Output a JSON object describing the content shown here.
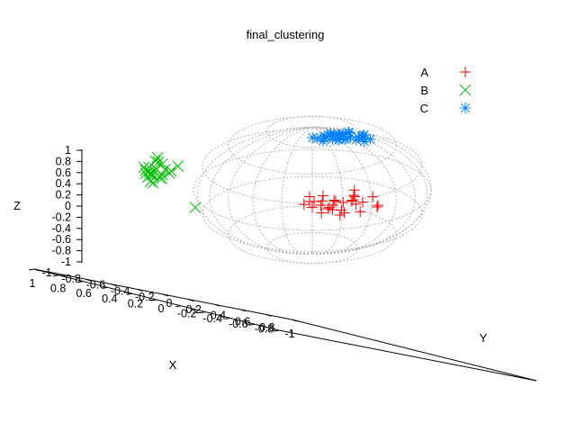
{
  "chart_data": {
    "type": "scatter",
    "subtype": "3d",
    "title": "final_clustering",
    "xlabel": "X",
    "ylabel": "Y",
    "zlabel": "Z",
    "xlim": [
      -1,
      1
    ],
    "ylim": [
      -1,
      1
    ],
    "zlim": [
      -1,
      1
    ],
    "x_ticks": [
      "-1",
      "-0.8",
      "-0.6",
      "-0.4",
      "-0.2",
      "0",
      "0.2",
      "0.4",
      "0.6",
      "0.8",
      "1"
    ],
    "y_ticks": [
      "-1",
      "-0.8",
      "-0.6",
      "-0.4",
      "-0.2",
      "0",
      "0.2",
      "0.4",
      "0.6",
      "0.8",
      "1"
    ],
    "z_ticks": [
      "1",
      "0.8",
      "0.6",
      "0.4",
      "0.2",
      "0",
      "-0.2",
      "-0.4",
      "-0.6",
      "-0.8",
      "-1"
    ],
    "reference_surface": "unit sphere wireframe (dashed grey)",
    "legend_position": "top-right",
    "series": [
      {
        "name": "A",
        "marker": "plus",
        "color": "#ff0000",
        "points": [
          [
            0.35,
            -0.15,
            0.0
          ],
          [
            0.28,
            -0.18,
            0.05
          ],
          [
            0.42,
            -0.1,
            -0.05
          ],
          [
            0.32,
            -0.2,
            -0.1
          ],
          [
            0.38,
            -0.12,
            0.08
          ],
          [
            0.3,
            -0.05,
            0.02
          ],
          [
            0.45,
            -0.18,
            0.0
          ],
          [
            0.25,
            -0.22,
            -0.04
          ],
          [
            0.4,
            -0.25,
            0.1
          ],
          [
            0.33,
            -0.08,
            -0.08
          ],
          [
            0.5,
            -0.15,
            0.05
          ],
          [
            0.22,
            -0.12,
            0.03
          ],
          [
            0.36,
            -0.3,
            -0.02
          ],
          [
            0.44,
            -0.05,
            -0.1
          ],
          [
            0.3,
            -0.15,
            0.15
          ],
          [
            0.55,
            -0.2,
            -0.03
          ],
          [
            0.2,
            -0.25,
            0.0
          ],
          [
            0.38,
            -0.2,
            -0.15
          ],
          [
            0.48,
            -0.28,
            0.06
          ],
          [
            0.27,
            -0.08,
            0.1
          ],
          [
            0.35,
            -0.35,
            0.02
          ],
          [
            0.6,
            -0.1,
            0.0
          ],
          [
            0.15,
            -0.3,
            0.05
          ],
          [
            0.42,
            -0.22,
            0.2
          ],
          [
            0.34,
            -0.12,
            -0.04
          ],
          [
            0.39,
            -0.17,
            0.03
          ],
          [
            0.31,
            -0.19,
            -0.06
          ],
          [
            0.46,
            -0.13,
            0.09
          ],
          [
            0.29,
            -0.27,
            0.01
          ],
          [
            0.52,
            -0.09,
            -0.07
          ]
        ]
      },
      {
        "name": "B",
        "marker": "cross",
        "color": "#00c000",
        "points": [
          [
            -0.75,
            -0.55,
            0.5
          ],
          [
            -0.8,
            -0.6,
            0.45
          ],
          [
            -0.72,
            -0.5,
            0.55
          ],
          [
            -0.78,
            -0.62,
            0.6
          ],
          [
            -0.7,
            -0.58,
            0.4
          ],
          [
            -0.82,
            -0.52,
            0.52
          ],
          [
            -0.76,
            -0.48,
            0.48
          ],
          [
            -0.68,
            -0.6,
            0.5
          ],
          [
            -0.74,
            -0.66,
            0.42
          ],
          [
            -0.8,
            -0.45,
            0.58
          ],
          [
            -0.85,
            -0.58,
            0.46
          ],
          [
            -0.7,
            -0.52,
            0.62
          ],
          [
            -0.77,
            -0.56,
            0.35
          ],
          [
            -0.72,
            -0.63,
            0.56
          ],
          [
            -0.79,
            -0.5,
            0.44
          ],
          [
            -0.6,
            -0.55,
            0.5
          ],
          [
            -0.65,
            -0.62,
            0.45
          ],
          [
            -0.55,
            -0.58,
            0.55
          ],
          [
            -0.83,
            -0.6,
            0.53
          ],
          [
            -0.73,
            -0.47,
            0.47
          ],
          [
            -0.78,
            -0.53,
            0.38
          ],
          [
            -0.75,
            -0.6,
            0.65
          ],
          [
            -0.71,
            -0.56,
            0.41
          ],
          [
            -0.81,
            -0.57,
            0.49
          ],
          [
            -0.3,
            -0.4,
            0.1
          ]
        ]
      },
      {
        "name": "C",
        "marker": "star",
        "color": "#0080ff",
        "points": [
          [
            0.55,
            0.55,
            0.72
          ],
          [
            0.6,
            0.52,
            0.7
          ],
          [
            0.5,
            0.58,
            0.75
          ],
          [
            0.58,
            0.6,
            0.68
          ],
          [
            0.52,
            0.5,
            0.73
          ],
          [
            0.62,
            0.56,
            0.71
          ],
          [
            0.56,
            0.48,
            0.74
          ],
          [
            0.48,
            0.55,
            0.7
          ],
          [
            0.64,
            0.6,
            0.69
          ],
          [
            0.54,
            0.62,
            0.72
          ],
          [
            0.6,
            0.5,
            0.76
          ],
          [
            0.5,
            0.52,
            0.67
          ],
          [
            0.57,
            0.57,
            0.78
          ],
          [
            0.45,
            0.6,
            0.72
          ],
          [
            0.66,
            0.53,
            0.73
          ],
          [
            0.53,
            0.45,
            0.7
          ],
          [
            0.59,
            0.63,
            0.74
          ],
          [
            0.47,
            0.5,
            0.71
          ],
          [
            0.63,
            0.58,
            0.66
          ],
          [
            0.55,
            0.6,
            0.77
          ],
          [
            0.51,
            0.56,
            0.69
          ],
          [
            0.61,
            0.47,
            0.72
          ],
          [
            0.56,
            0.53,
            0.75
          ],
          [
            0.49,
            0.62,
            0.68
          ],
          [
            0.65,
            0.55,
            0.74
          ],
          [
            0.58,
            0.49,
            0.7
          ],
          [
            0.52,
            0.58,
            0.73
          ],
          [
            0.6,
            0.61,
            0.71
          ],
          [
            0.54,
            0.51,
            0.76
          ],
          [
            0.57,
            0.55,
            0.69
          ]
        ]
      }
    ]
  }
}
